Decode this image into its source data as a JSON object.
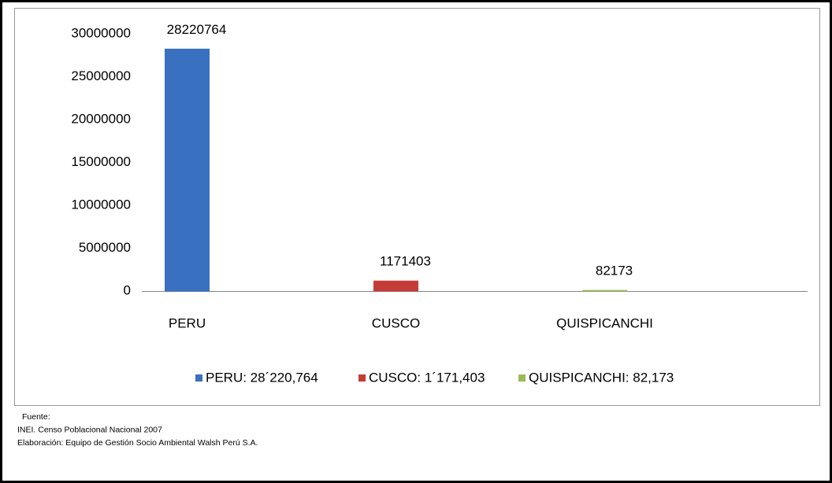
{
  "chart_data": {
    "type": "bar",
    "categories": [
      "PERU",
      "CUSCO",
      "QUISPICANCHI"
    ],
    "series": [
      {
        "name": "PERU: 28´220,764",
        "color": "#3a70c0",
        "values": [
          28220764,
          null,
          null
        ]
      },
      {
        "name": "CUSCO: 1´171,403",
        "color": "#c43c38",
        "values": [
          null,
          1171403,
          null
        ]
      },
      {
        "name": "QUISPICANCHI: 82,173",
        "color": "#9bbb59",
        "values": [
          null,
          null,
          82173
        ]
      }
    ],
    "ylim": [
      0,
      30000000
    ],
    "yticks": [
      0,
      5000000,
      10000000,
      15000000,
      20000000,
      25000000,
      30000000
    ],
    "legend": "bottom",
    "source": [
      "Fuente:",
      "INEI. Censo Poblacional Nacional 2007",
      "Elaboración: Equipo de Gestión Socio Ambiental Walsh Perú S.A."
    ]
  }
}
